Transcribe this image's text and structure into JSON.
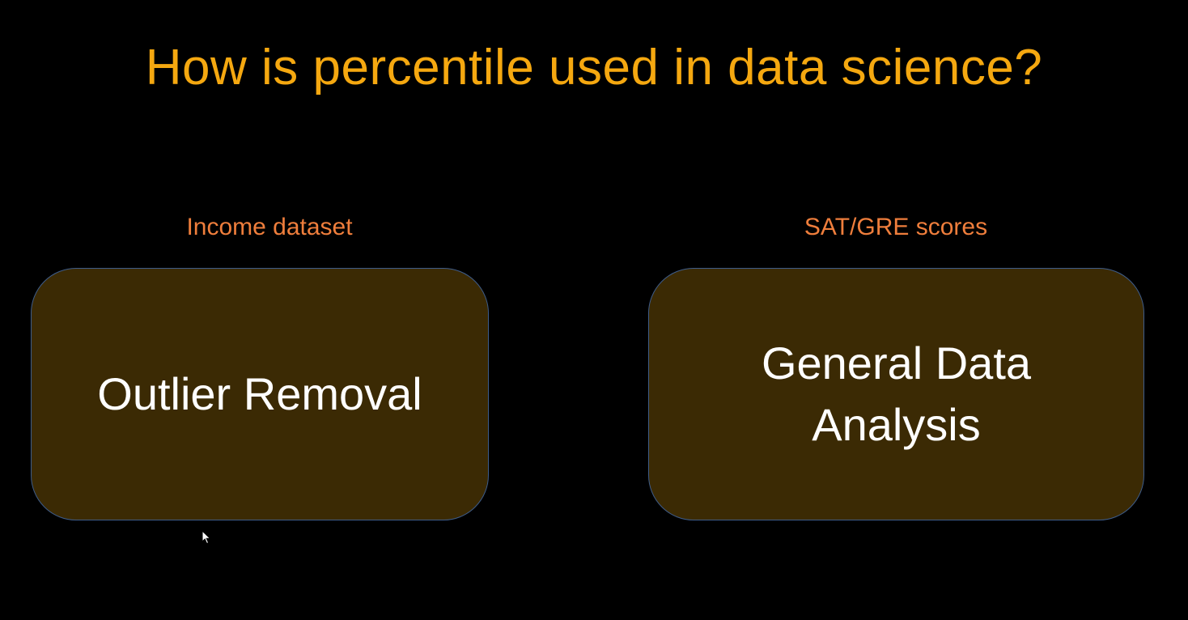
{
  "slide": {
    "title": "How is percentile used in data science?",
    "columns": [
      {
        "caption": "Income dataset",
        "card_lines": [
          "Outlier Removal"
        ]
      },
      {
        "caption": "SAT/GRE scores",
        "card_lines": [
          "General Data",
          "Analysis"
        ]
      }
    ]
  },
  "colors": {
    "background": "#000000",
    "title": "#f5a810",
    "caption": "#ef7e3c",
    "card_fill": "#3b2a04",
    "card_border": "#3e5c8a",
    "card_text": "#ffffff"
  },
  "icons": {
    "cursor": "mouse-pointer-icon"
  }
}
